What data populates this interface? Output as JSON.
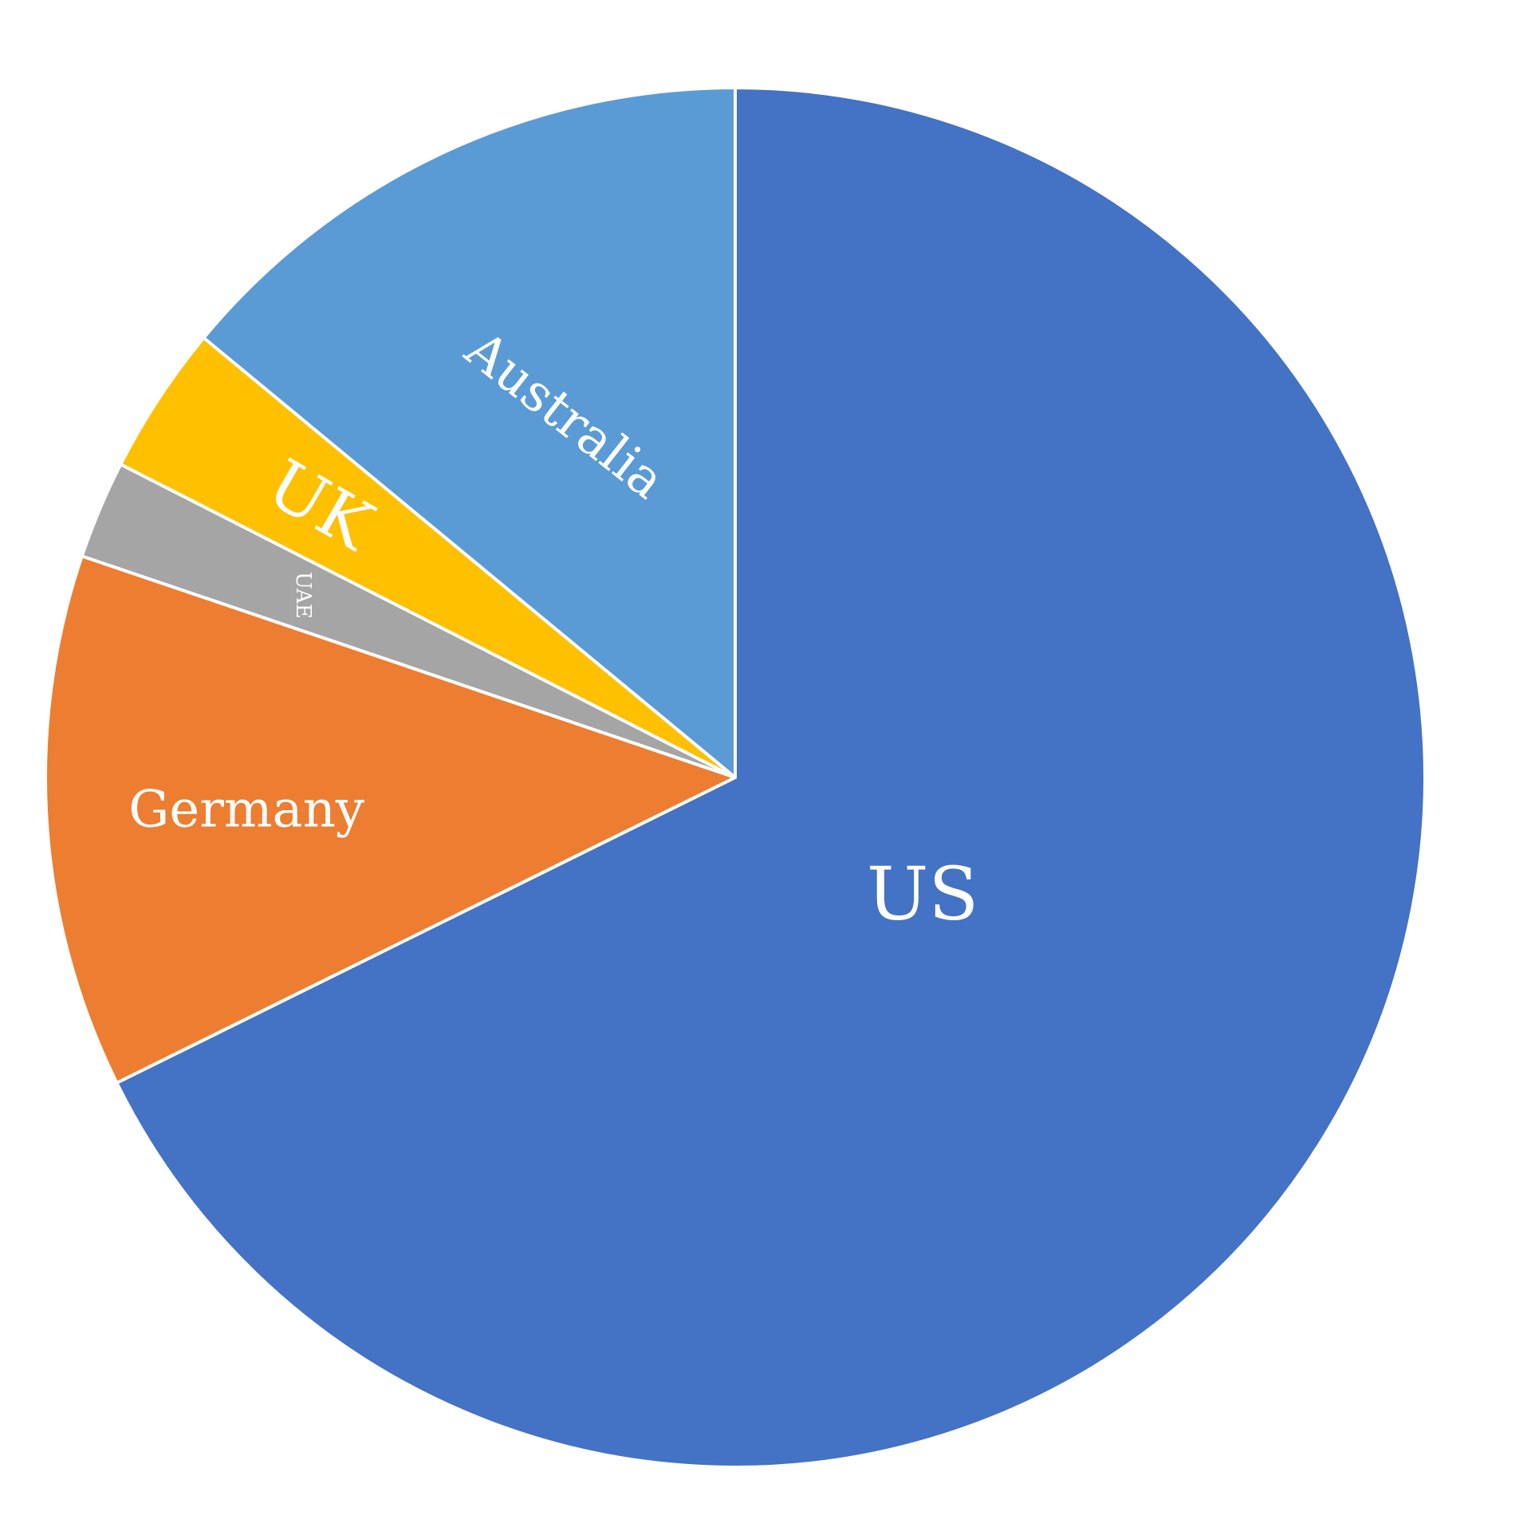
{
  "chart_data": {
    "type": "pie",
    "title": "",
    "start_angle_deg": 90,
    "direction": "clockwise",
    "slices": [
      {
        "label": "US",
        "value": 67.7,
        "color": "#4472C4"
      },
      {
        "label": "Germany",
        "value": 12.5,
        "color": "#ED7D31"
      },
      {
        "label": "UAE",
        "value": 2.3,
        "color": "#A5A5A5"
      },
      {
        "label": "UK",
        "value": 3.5,
        "color": "#FFC000"
      },
      {
        "label": "Australia",
        "value": 14.0,
        "color": "#5B9BD5"
      }
    ],
    "legend": "none",
    "data_labels": "category names inside slices"
  }
}
